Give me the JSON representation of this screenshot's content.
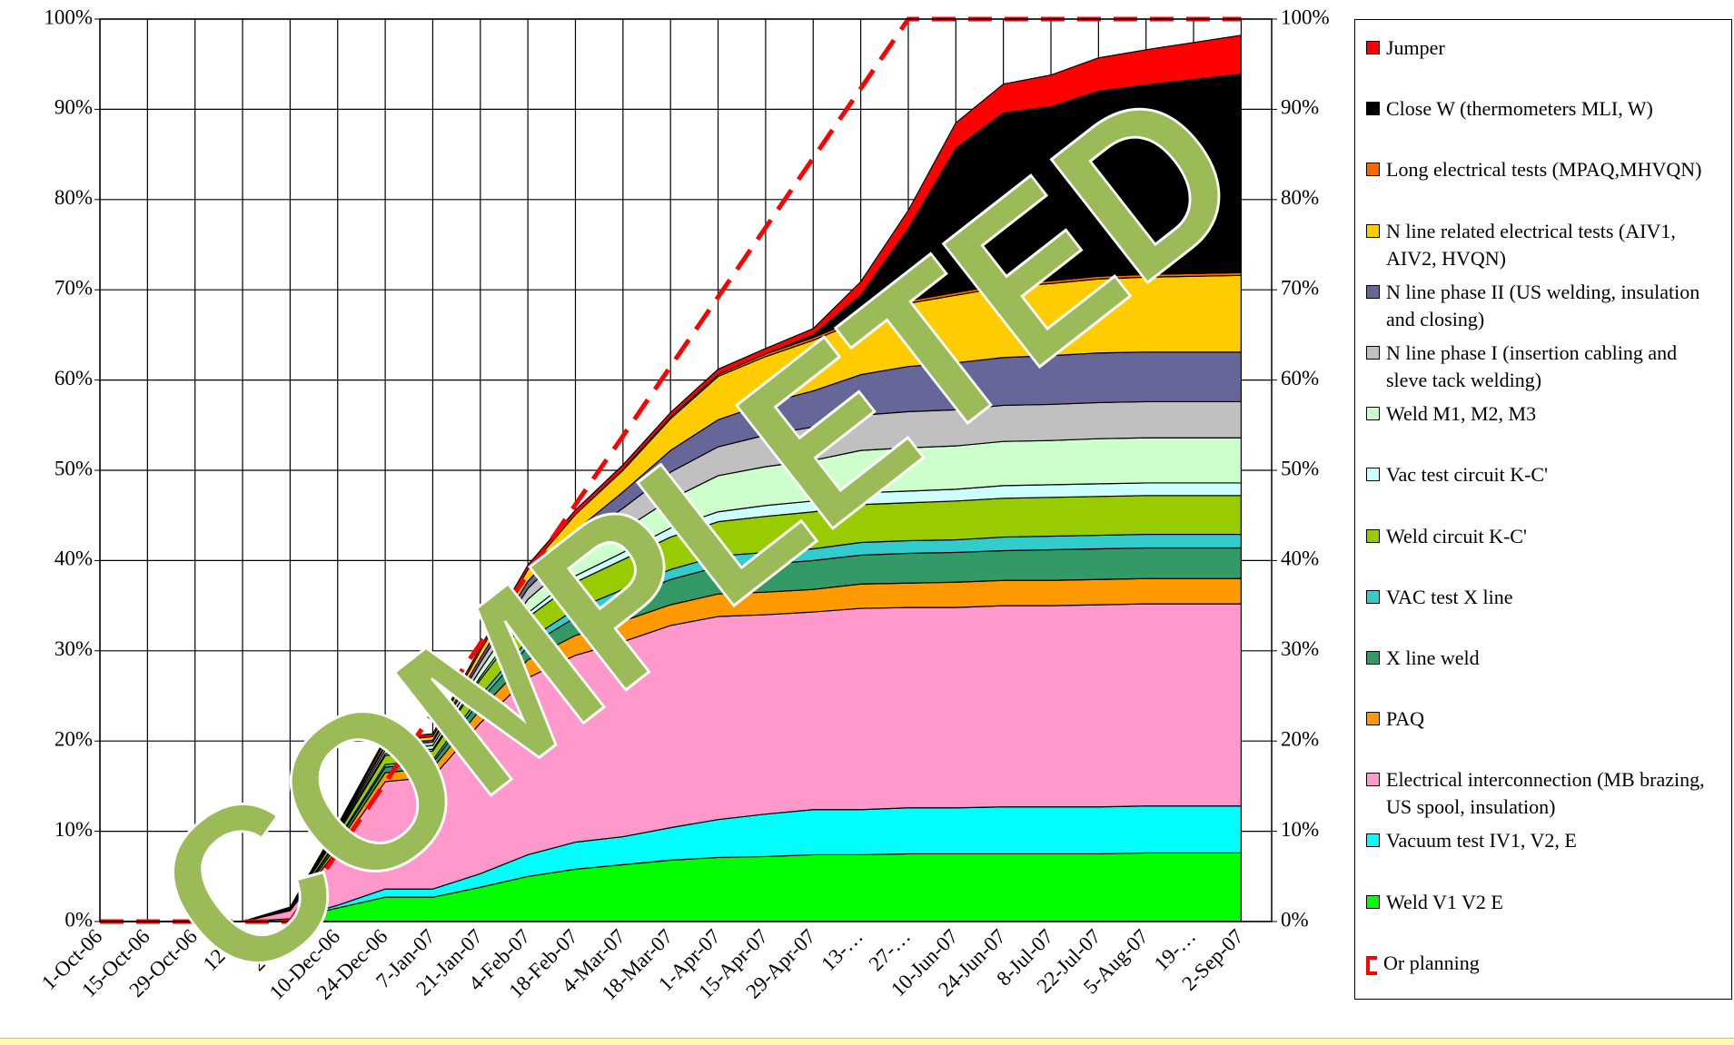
{
  "chart_data": {
    "type": "stacked_area",
    "annotation": "COMPLETED",
    "categories": [
      "1-Oct-06",
      "15-Oct-06",
      "29-Oct-06",
      "12-…",
      "26-…",
      "10-Dec-06",
      "24-Dec-06",
      "7-Jan-07",
      "21-Jan-07",
      "4-Feb-07",
      "18-Feb-07",
      "4-Mar-07",
      "18-Mar-07",
      "1-Apr-07",
      "15-Apr-07",
      "29-Apr-07",
      "13-…",
      "27-…",
      "10-Jun-07",
      "24-Jun-07",
      "8-Jul-07",
      "22-Jul-07",
      "5-Aug-07",
      "19-…",
      "2-Sep-07"
    ],
    "ylim": [
      0,
      100
    ],
    "yticks": [
      {
        "value": 0,
        "label": "0%"
      },
      {
        "value": 10,
        "label": "10%"
      },
      {
        "value": 20,
        "label": "20%"
      },
      {
        "value": 30,
        "label": "30%"
      },
      {
        "value": 40,
        "label": "40%"
      },
      {
        "value": 50,
        "label": "50%"
      },
      {
        "value": 60,
        "label": "60%"
      },
      {
        "value": 70,
        "label": "70%"
      },
      {
        "value": 80,
        "label": "80%"
      },
      {
        "value": 90,
        "label": "90%"
      },
      {
        "value": 100,
        "label": "100%"
      }
    ],
    "y2lim": [
      0,
      100
    ],
    "y2ticks": [
      {
        "value": 0,
        "label": "0%"
      },
      {
        "value": 10,
        "label": "10%"
      },
      {
        "value": 20,
        "label": "20%"
      },
      {
        "value": 30,
        "label": "30%"
      },
      {
        "value": 40,
        "label": "40%"
      },
      {
        "value": 50,
        "label": "50%"
      },
      {
        "value": 60,
        "label": "60%"
      },
      {
        "value": 70,
        "label": "70%"
      },
      {
        "value": 80,
        "label": "80%"
      },
      {
        "value": 90,
        "label": "90%"
      },
      {
        "value": 100,
        "label": "100%"
      }
    ],
    "grid": true,
    "legend": "right",
    "series": [
      {
        "name": "Weld V1 V2 E",
        "color": "#00ff00",
        "values": [
          0,
          0,
          0,
          0,
          0.3,
          1.5,
          2.7,
          2.7,
          3.8,
          5,
          5.8,
          6.3,
          6.8,
          7.1,
          7.2,
          7.4,
          7.4,
          7.5,
          7.5,
          7.5,
          7.5,
          7.5,
          7.6,
          7.6,
          7.6
        ]
      },
      {
        "name": "Vacuum test IV1, V2, E",
        "color": "#00ffff",
        "values": [
          0,
          0,
          0,
          0,
          0,
          0.3,
          0.9,
          0.9,
          1.5,
          2.4,
          3,
          3.1,
          3.6,
          4.2,
          4.7,
          5,
          5,
          5.1,
          5.1,
          5.2,
          5.2,
          5.2,
          5.2,
          5.2,
          5.2
        ]
      },
      {
        "name": "Electrical interconnection (MB brazing, US spool, insulation)",
        "color": "#ff99cc",
        "values": [
          0,
          0,
          0,
          0,
          0.9,
          6.2,
          11.9,
          12.4,
          16.7,
          19.6,
          20.7,
          21.6,
          22.4,
          22.5,
          22.1,
          21.9,
          22.3,
          22.2,
          22.2,
          22.3,
          22.3,
          22.4,
          22.4,
          22.4,
          22.4
        ]
      },
      {
        "name": "PAQ",
        "color": "#ff9900",
        "values": [
          0,
          0,
          0,
          0,
          0.1,
          0.5,
          1,
          1,
          1.5,
          2,
          2.2,
          2.3,
          2.3,
          2.5,
          2.5,
          2.5,
          2.7,
          2.7,
          2.8,
          2.8,
          2.8,
          2.8,
          2.8,
          2.8,
          2.8
        ]
      },
      {
        "name": "X line weld",
        "color": "#339966",
        "values": [
          0,
          0,
          0,
          0,
          0.1,
          0.4,
          0.6,
          0.6,
          1,
          1.5,
          2,
          2.5,
          2.8,
          3,
          3.1,
          3.2,
          3.2,
          3.3,
          3.3,
          3.3,
          3.4,
          3.4,
          3.4,
          3.4,
          3.4
        ]
      },
      {
        "name": "VAC test X line",
        "color": "#33cccc",
        "values": [
          0,
          0,
          0,
          0,
          0,
          0.2,
          0.3,
          0.3,
          0.5,
          0.7,
          0.9,
          1,
          1.1,
          1.2,
          1.3,
          1.3,
          1.4,
          1.4,
          1.4,
          1.5,
          1.5,
          1.5,
          1.5,
          1.5,
          1.5
        ]
      },
      {
        "name": "Weld circuit K-C'",
        "color": "#99cc00",
        "values": [
          0,
          0,
          0,
          0,
          0.1,
          0.6,
          1,
          1,
          1.8,
          2.5,
          3,
          3.3,
          3.6,
          3.8,
          4,
          4.1,
          4.2,
          4.2,
          4.3,
          4.3,
          4.3,
          4.3,
          4.3,
          4.3,
          4.3
        ]
      },
      {
        "name": "Vac test circuit K-C'",
        "color": "#ccffff",
        "values": [
          0,
          0,
          0,
          0,
          0,
          0.1,
          0.2,
          0.2,
          0.3,
          0.5,
          0.7,
          0.8,
          1,
          1.1,
          1.2,
          1.2,
          1.3,
          1.3,
          1.3,
          1.4,
          1.4,
          1.4,
          1.4,
          1.4,
          1.4
        ]
      },
      {
        "name": "Weld M1, M2, M3",
        "color": "#ccffcc",
        "values": [
          0,
          0,
          0,
          0,
          0,
          0.2,
          0.4,
          0.4,
          0.8,
          1.5,
          2,
          2.5,
          3.2,
          4,
          4.3,
          4.5,
          4.7,
          4.8,
          4.8,
          4.9,
          4.9,
          5,
          5,
          5,
          5
        ]
      },
      {
        "name": "N line phase I (insertion cabling and sleve tack welding)",
        "color": "#c0c0c0",
        "values": [
          0,
          0,
          0,
          0,
          0,
          0.2,
          0.4,
          0.4,
          0.8,
          1.2,
          1.8,
          2.4,
          3,
          3.2,
          3.5,
          3.7,
          3.9,
          4,
          4,
          4,
          4,
          4,
          4,
          4,
          4
        ]
      },
      {
        "name": "N line phase II (US welding, insulation and closing)",
        "color": "#666699",
        "values": [
          0,
          0,
          0,
          0,
          0,
          0.1,
          0.2,
          0.2,
          0.5,
          0.8,
          1.2,
          1.8,
          2.4,
          3,
          3.5,
          4,
          4.5,
          5,
          5.2,
          5.3,
          5.4,
          5.5,
          5.5,
          5.5,
          5.5
        ]
      },
      {
        "name": "N line related electrical tests (AIV1, AIV2, HVQN)",
        "color": "#ffcc00",
        "values": [
          0,
          0,
          0,
          0,
          0,
          0.2,
          0.4,
          0.4,
          0.8,
          1.3,
          1.8,
          2.4,
          3.5,
          4.8,
          5.2,
          5.6,
          6,
          7,
          7.5,
          7.8,
          8,
          8.2,
          8.3,
          8.4,
          8.5
        ]
      },
      {
        "name": "Long electrical tests (MPAQ,MHVQN)",
        "color": "#ff6600",
        "values": [
          0,
          0,
          0,
          0,
          0,
          0,
          0,
          0,
          0,
          0,
          0,
          0.1,
          0.2,
          0.2,
          0.3,
          0.3,
          0.3,
          0.3,
          0.3,
          0.3,
          0.3,
          0.3,
          0.3,
          0.3,
          0.3
        ]
      },
      {
        "name": "Close W (thermometers MLI, W)",
        "color": "#000000",
        "values": [
          0,
          0,
          0,
          0,
          0,
          0,
          0,
          0,
          0,
          0,
          0,
          0,
          0,
          0,
          0,
          0.3,
          2.5,
          8,
          16,
          19,
          19.3,
          20.5,
          21,
          21.5,
          22
        ]
      },
      {
        "name": "Jumper",
        "color": "#ff0000",
        "values": [
          0,
          0,
          0,
          0,
          0.1,
          0.2,
          0.3,
          0.3,
          0.4,
          0.5,
          0.5,
          0.5,
          0.5,
          0.6,
          0.6,
          0.7,
          1.5,
          2,
          2.8,
          3.2,
          3.5,
          3.7,
          3.9,
          4.1,
          4.3
        ]
      }
    ],
    "planning": {
      "name": "Or planning",
      "color": "#ff0000",
      "values": [
        0,
        0,
        0,
        0,
        0,
        7.7,
        15.4,
        23.1,
        30.8,
        38.5,
        46.2,
        53.8,
        61.5,
        69.2,
        76.9,
        84.6,
        92.3,
        100,
        100,
        100,
        100,
        100,
        100,
        100,
        100
      ]
    }
  }
}
